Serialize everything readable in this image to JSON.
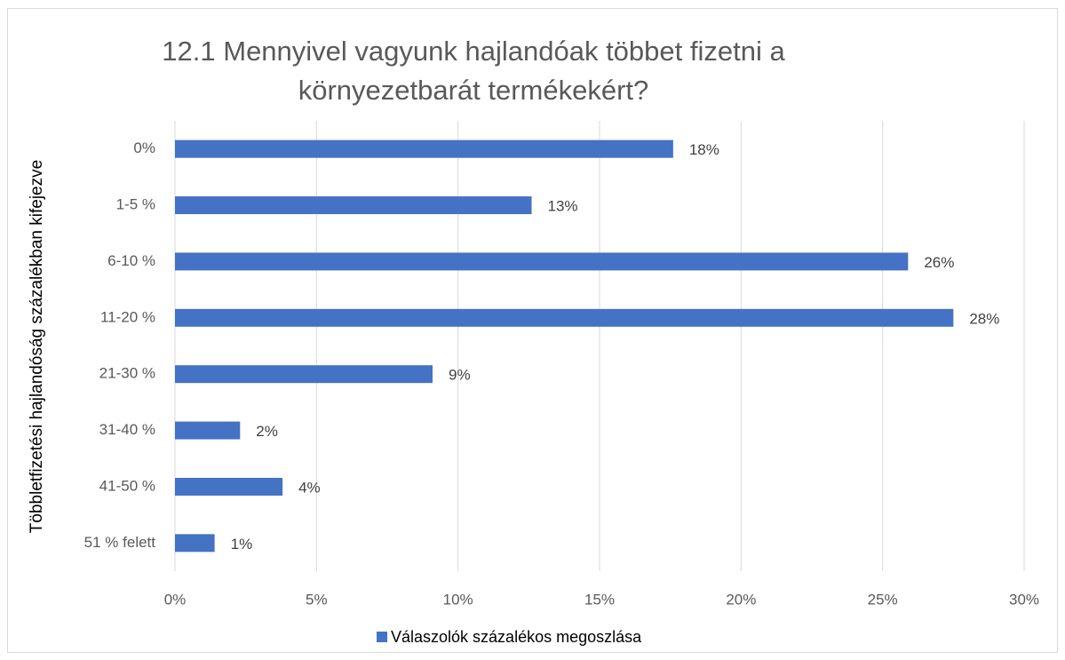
{
  "chart_data": {
    "type": "bar",
    "orientation": "horizontal",
    "title": [
      "12.1 Mennyivel vagyunk hajlandóak többet fizetni a",
      "környezetbarát termékekért?"
    ],
    "y_label": "Többletfizetési hajlandóság százalékban kifejezve",
    "categories": [
      "0%",
      "1-5 %",
      "6-10 %",
      "11-20 %",
      "21-30 %",
      "31-40 %",
      "41-50 %",
      "51 % felett"
    ],
    "series": [
      {
        "name": "Válaszolók százalékos megoszlása",
        "color": "#4472c4",
        "values": [
          17.6,
          12.6,
          25.9,
          27.5,
          9.1,
          2.3,
          3.8,
          1.4
        ],
        "value_labels": [
          "18%",
          "13%",
          "26%",
          "28%",
          "9%",
          "2%",
          "4%",
          "1%"
        ]
      }
    ],
    "xlim": [
      0,
      30
    ],
    "xticks": [
      {
        "value": 0,
        "label": "0%"
      },
      {
        "value": 5,
        "label": "5%"
      },
      {
        "value": 10,
        "label": "10%"
      },
      {
        "value": 15,
        "label": "15%"
      },
      {
        "value": 20,
        "label": "20%"
      },
      {
        "value": 25,
        "label": "25%"
      },
      {
        "value": 30,
        "label": "30%"
      }
    ],
    "grid": true,
    "legend": "bottom"
  }
}
